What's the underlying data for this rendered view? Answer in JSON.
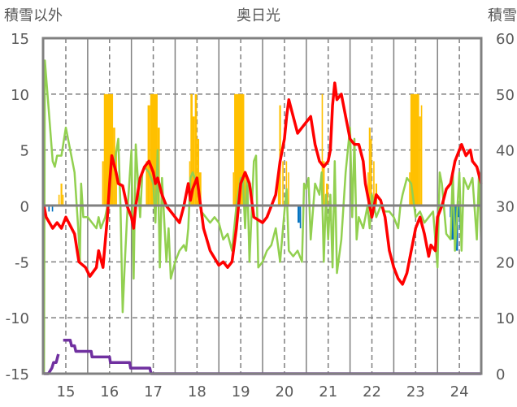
{
  "chart_data": {
    "type": "line",
    "title": "奥日光",
    "ylabel_left": "積雪以外",
    "ylabel_right": "積雪",
    "xlim": [
      14.48,
      24.5
    ],
    "ylim_left": [
      -15,
      15
    ],
    "ylim_right": [
      0,
      60
    ],
    "x_ticks": [
      "15",
      "16",
      "17",
      "18",
      "19",
      "20",
      "21",
      "22",
      "23",
      "24"
    ],
    "y_ticks_left": [
      "15",
      "10",
      "5",
      "0",
      "-5",
      "-10",
      "-15"
    ],
    "y_ticks_right": [
      "60",
      "50",
      "40",
      "30",
      "20",
      "10",
      "0"
    ],
    "grid": true,
    "colors": {
      "red": "#ff0000",
      "green": "#92d050",
      "yellow": "#ffc000",
      "blue": "#0070c0",
      "purple": "#7030a0",
      "frame": "#808080"
    },
    "bars_positive": [
      [
        14.83,
        14.86,
        1
      ],
      [
        14.88,
        14.92,
        2
      ],
      [
        14.92,
        14.95,
        1
      ],
      [
        15.83,
        15.87,
        4
      ],
      [
        15.87,
        16.08,
        10
      ],
      [
        16.08,
        16.13,
        7
      ],
      [
        16.13,
        16.17,
        5
      ],
      [
        16.83,
        16.87,
        4
      ],
      [
        16.87,
        16.93,
        9
      ],
      [
        16.93,
        17.1,
        10
      ],
      [
        17.1,
        17.15,
        7
      ],
      [
        17.82,
        17.85,
        4
      ],
      [
        17.85,
        17.9,
        10
      ],
      [
        17.9,
        17.95,
        8
      ],
      [
        17.95,
        18.0,
        10
      ],
      [
        18.0,
        18.05,
        6
      ],
      [
        18.05,
        18.1,
        3
      ],
      [
        18.82,
        18.85,
        3
      ],
      [
        18.85,
        19.08,
        10
      ],
      [
        19.08,
        19.12,
        3
      ],
      [
        19.85,
        19.88,
        3
      ],
      [
        19.88,
        19.92,
        9
      ],
      [
        19.95,
        19.98,
        4
      ],
      [
        20.03,
        20.06,
        4
      ],
      [
        20.08,
        20.11,
        3
      ],
      [
        20.85,
        20.88,
        10
      ],
      [
        20.88,
        20.92,
        4
      ],
      [
        20.95,
        21.0,
        2
      ],
      [
        21.9,
        21.93,
        3
      ],
      [
        21.93,
        21.97,
        7
      ],
      [
        21.97,
        22.0,
        6
      ],
      [
        22.03,
        22.06,
        4
      ],
      [
        22.08,
        22.12,
        2
      ],
      [
        22.85,
        22.88,
        3
      ],
      [
        22.88,
        23.08,
        10
      ],
      [
        23.08,
        23.12,
        8
      ],
      [
        23.12,
        23.15,
        9
      ]
    ],
    "bars_negative": [
      [
        14.6,
        14.63,
        -0.5
      ],
      [
        14.68,
        14.71,
        -0.5
      ],
      [
        20.3,
        20.35,
        -1.5
      ],
      [
        20.35,
        20.38,
        -2
      ],
      [
        23.78,
        23.82,
        -1
      ],
      [
        23.82,
        23.87,
        -3
      ],
      [
        23.87,
        23.92,
        -2
      ],
      [
        23.92,
        23.97,
        -4
      ],
      [
        23.97,
        24.0,
        -1
      ],
      [
        24.0,
        24.03,
        -2
      ]
    ],
    "series": [
      {
        "name": "red",
        "axis": "left",
        "points": [
          [
            14.5,
            0
          ],
          [
            14.55,
            -1
          ],
          [
            14.7,
            -2
          ],
          [
            14.8,
            -1.5
          ],
          [
            14.9,
            -2
          ],
          [
            15.0,
            -1
          ],
          [
            15.2,
            -2.5
          ],
          [
            15.3,
            -5
          ],
          [
            15.45,
            -5.5
          ],
          [
            15.55,
            -6.3
          ],
          [
            15.7,
            -5.5
          ],
          [
            15.75,
            -4
          ],
          [
            15.85,
            -5.5
          ],
          [
            15.95,
            -1
          ],
          [
            16.0,
            2
          ],
          [
            16.05,
            4.5
          ],
          [
            16.15,
            3
          ],
          [
            16.2,
            2
          ],
          [
            16.3,
            1.8
          ],
          [
            16.4,
            0
          ],
          [
            16.5,
            -1
          ],
          [
            16.55,
            -2
          ],
          [
            16.6,
            0
          ],
          [
            16.7,
            2.5
          ],
          [
            16.8,
            3.5
          ],
          [
            16.9,
            4
          ],
          [
            17.0,
            3
          ],
          [
            17.05,
            2
          ],
          [
            17.1,
            2.5
          ],
          [
            17.2,
            1
          ],
          [
            17.3,
            0
          ],
          [
            17.5,
            -1
          ],
          [
            17.6,
            -1.5
          ],
          [
            17.7,
            0
          ],
          [
            17.8,
            2
          ],
          [
            17.85,
            0.5
          ],
          [
            17.9,
            1.5
          ],
          [
            18.0,
            2.5
          ],
          [
            18.05,
            1
          ],
          [
            18.15,
            -2
          ],
          [
            18.3,
            -4
          ],
          [
            18.5,
            -5.3
          ],
          [
            18.6,
            -5
          ],
          [
            18.7,
            -5.5
          ],
          [
            18.8,
            -5
          ],
          [
            18.9,
            -2
          ],
          [
            19.0,
            2
          ],
          [
            19.1,
            3
          ],
          [
            19.2,
            2
          ],
          [
            19.3,
            -1
          ],
          [
            19.5,
            -1.5
          ],
          [
            19.6,
            -1
          ],
          [
            19.8,
            1
          ],
          [
            19.9,
            4
          ],
          [
            20.0,
            6
          ],
          [
            20.05,
            8
          ],
          [
            20.1,
            9.5
          ],
          [
            20.2,
            8
          ],
          [
            20.3,
            6.5
          ],
          [
            20.4,
            7
          ],
          [
            20.5,
            7.5
          ],
          [
            20.6,
            8
          ],
          [
            20.7,
            5.5
          ],
          [
            20.8,
            4
          ],
          [
            20.9,
            3.5
          ],
          [
            21.0,
            4
          ],
          [
            21.05,
            5
          ],
          [
            21.1,
            9
          ],
          [
            21.15,
            11
          ],
          [
            21.2,
            9.5
          ],
          [
            21.3,
            10
          ],
          [
            21.4,
            8
          ],
          [
            21.5,
            6
          ],
          [
            21.6,
            5.5
          ],
          [
            21.7,
            5.5
          ],
          [
            21.8,
            4
          ],
          [
            21.85,
            2
          ],
          [
            21.95,
            0
          ],
          [
            22.0,
            -1
          ],
          [
            22.1,
            1
          ],
          [
            22.2,
            0.5
          ],
          [
            22.3,
            -1
          ],
          [
            22.4,
            -4
          ],
          [
            22.5,
            -5.5
          ],
          [
            22.6,
            -6.5
          ],
          [
            22.7,
            -7
          ],
          [
            22.8,
            -6
          ],
          [
            22.9,
            -4
          ],
          [
            23.0,
            -2
          ],
          [
            23.1,
            -1
          ],
          [
            23.2,
            -2.5
          ],
          [
            23.3,
            -4.5
          ],
          [
            23.35,
            -3.5
          ],
          [
            23.45,
            -4
          ],
          [
            23.5,
            -1
          ],
          [
            23.6,
            0
          ],
          [
            23.7,
            1.5
          ],
          [
            23.8,
            2
          ],
          [
            23.9,
            4
          ],
          [
            24.0,
            5
          ],
          [
            24.05,
            5.5
          ],
          [
            24.15,
            4.5
          ],
          [
            24.25,
            5
          ],
          [
            24.3,
            4
          ],
          [
            24.4,
            3.5
          ],
          [
            24.5,
            2
          ]
        ]
      },
      {
        "name": "green",
        "axis": "left",
        "points": [
          [
            14.5,
            -15
          ],
          [
            14.52,
            13
          ],
          [
            14.6,
            9
          ],
          [
            14.7,
            4
          ],
          [
            14.75,
            3.5
          ],
          [
            14.8,
            4.5
          ],
          [
            14.9,
            4.5
          ],
          [
            15.0,
            7
          ],
          [
            15.1,
            5
          ],
          [
            15.2,
            3
          ],
          [
            15.3,
            -3
          ],
          [
            15.32,
            -5
          ],
          [
            15.35,
            2
          ],
          [
            15.4,
            -1
          ],
          [
            15.5,
            -1
          ],
          [
            15.6,
            -1.5
          ],
          [
            15.7,
            -2
          ],
          [
            15.75,
            -1
          ],
          [
            15.8,
            -2
          ],
          [
            15.9,
            -1
          ],
          [
            16.0,
            1
          ],
          [
            16.05,
            4.5
          ],
          [
            16.1,
            3.5
          ],
          [
            16.2,
            6
          ],
          [
            16.25,
            0
          ],
          [
            16.3,
            -9.5
          ],
          [
            16.35,
            -5
          ],
          [
            16.4,
            -1
          ],
          [
            16.5,
            5
          ],
          [
            16.55,
            -6.5
          ],
          [
            16.6,
            5.5
          ],
          [
            16.7,
            -1
          ],
          [
            16.75,
            3
          ],
          [
            16.8,
            3.5
          ],
          [
            16.9,
            3
          ],
          [
            17.0,
            2
          ],
          [
            17.05,
            -1.5
          ],
          [
            17.1,
            5
          ],
          [
            17.15,
            -5.5
          ],
          [
            17.2,
            2.5
          ],
          [
            17.3,
            -5
          ],
          [
            17.35,
            -2
          ],
          [
            17.4,
            -6.5
          ],
          [
            17.5,
            -5
          ],
          [
            17.6,
            -4
          ],
          [
            17.7,
            -3.5
          ],
          [
            17.75,
            -4
          ],
          [
            17.8,
            -2
          ],
          [
            17.85,
            2.5
          ],
          [
            17.9,
            3
          ],
          [
            18.0,
            2
          ],
          [
            18.1,
            -0.5
          ],
          [
            18.2,
            -1
          ],
          [
            18.3,
            -1.5
          ],
          [
            18.4,
            -1
          ],
          [
            18.5,
            -1.5
          ],
          [
            18.6,
            -3
          ],
          [
            18.7,
            -2.5
          ],
          [
            18.8,
            -4
          ],
          [
            18.9,
            0
          ],
          [
            19.0,
            2.5
          ],
          [
            19.05,
            2.5
          ],
          [
            19.1,
            -2
          ],
          [
            19.15,
            2.5
          ],
          [
            19.2,
            -5
          ],
          [
            19.3,
            4
          ],
          [
            19.35,
            4.5
          ],
          [
            19.4,
            -5.5
          ],
          [
            19.5,
            -5
          ],
          [
            19.6,
            -4
          ],
          [
            19.7,
            -3.5
          ],
          [
            19.8,
            -2
          ],
          [
            19.9,
            -5
          ],
          [
            20.0,
            -0.5
          ],
          [
            20.05,
            1.5
          ],
          [
            20.1,
            -4
          ],
          [
            20.2,
            -4.5
          ],
          [
            20.3,
            -4
          ],
          [
            20.4,
            -5
          ],
          [
            20.45,
            2
          ],
          [
            20.5,
            1.5
          ],
          [
            20.55,
            2.5
          ],
          [
            20.6,
            -3
          ],
          [
            20.7,
            2
          ],
          [
            20.8,
            1
          ],
          [
            20.85,
            3
          ],
          [
            20.9,
            -5
          ],
          [
            20.95,
            1
          ],
          [
            21.0,
            -3
          ],
          [
            21.05,
            1
          ],
          [
            21.1,
            -5.5
          ],
          [
            21.15,
            4
          ],
          [
            21.2,
            -6
          ],
          [
            21.3,
            -3
          ],
          [
            21.4,
            3
          ],
          [
            21.5,
            7
          ],
          [
            21.55,
            -1
          ],
          [
            21.6,
            6
          ],
          [
            21.65,
            -3
          ],
          [
            21.7,
            -1
          ],
          [
            21.8,
            -2
          ],
          [
            21.9,
            0
          ],
          [
            21.95,
            -2
          ],
          [
            22.0,
            1
          ],
          [
            22.1,
            -1
          ],
          [
            22.2,
            0
          ],
          [
            22.3,
            -0.5
          ],
          [
            22.4,
            -0.5
          ],
          [
            22.5,
            -1
          ],
          [
            22.6,
            -2
          ],
          [
            22.65,
            0
          ],
          [
            22.7,
            1
          ],
          [
            22.8,
            2.5
          ],
          [
            22.9,
            2
          ],
          [
            23.0,
            -1
          ],
          [
            23.1,
            -0.5
          ],
          [
            23.2,
            -1.5
          ],
          [
            23.3,
            -1
          ],
          [
            23.4,
            -0.5
          ],
          [
            23.5,
            -5.5
          ],
          [
            23.55,
            3
          ],
          [
            23.6,
            2
          ],
          [
            23.7,
            -2.5
          ],
          [
            23.8,
            -3
          ],
          [
            23.85,
            3
          ],
          [
            23.9,
            -4
          ],
          [
            24.0,
            3
          ],
          [
            24.05,
            -4
          ],
          [
            24.1,
            2.5
          ],
          [
            24.2,
            1.5
          ],
          [
            24.3,
            2.5
          ],
          [
            24.4,
            -3
          ],
          [
            24.45,
            3
          ],
          [
            24.5,
            -3.5
          ]
        ]
      },
      {
        "name": "purple",
        "axis": "right",
        "segments": [
          [
            [
              14.5,
              0
            ],
            [
              14.6,
              0
            ],
            [
              14.68,
              1
            ],
            [
              14.72,
              2
            ],
            [
              14.78,
              2
            ],
            [
              14.83,
              3.5
            ]
          ],
          [
            [
              14.94,
              6
            ],
            [
              15.1,
              6
            ],
            [
              15.13,
              5
            ],
            [
              15.2,
              5
            ],
            [
              15.23,
              4
            ],
            [
              15.58,
              4
            ],
            [
              15.6,
              3
            ],
            [
              16.0,
              3
            ],
            [
              16.02,
              2
            ],
            [
              16.46,
              2
            ],
            [
              16.48,
              1
            ],
            [
              16.92,
              1
            ],
            [
              16.95,
              0
            ],
            [
              24.5,
              0
            ]
          ]
        ]
      }
    ]
  }
}
